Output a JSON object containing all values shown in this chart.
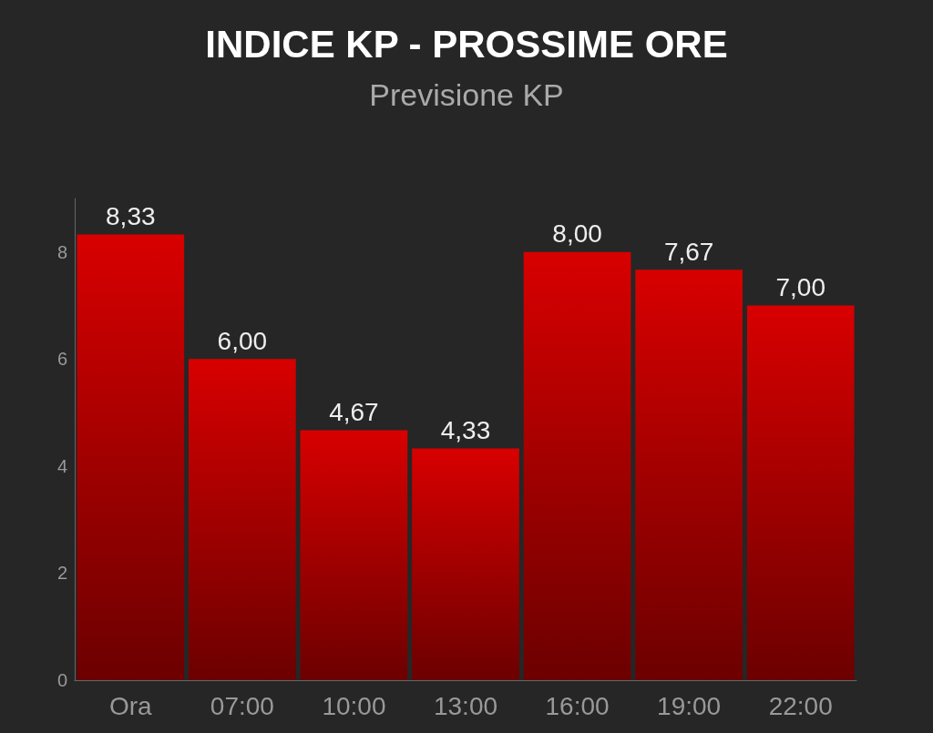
{
  "chart_data": {
    "type": "bar",
    "title": "INDICE KP - PROSSIME ORE",
    "subtitle": "Previsione KP",
    "categories": [
      "Ora",
      "07:00",
      "10:00",
      "13:00",
      "16:00",
      "19:00",
      "22:00"
    ],
    "values": [
      8.33,
      6.0,
      4.67,
      4.33,
      8.0,
      7.67,
      7.0
    ],
    "value_labels": [
      "8,33",
      "6,00",
      "4,67",
      "4,33",
      "8,00",
      "7,67",
      "7,00"
    ],
    "color": "#d80000",
    "ylim": [
      0,
      9
    ],
    "yticks": [
      0,
      2,
      4,
      6,
      8
    ],
    "grid": false
  }
}
